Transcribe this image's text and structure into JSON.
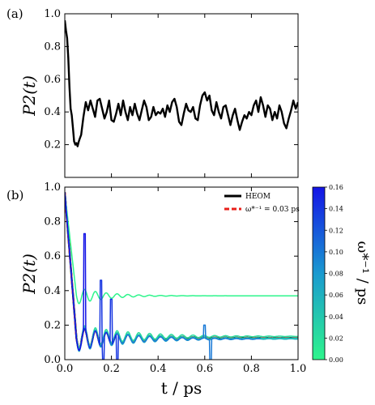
{
  "figure": {
    "panels": [
      {
        "id": "a",
        "label": "(a)"
      },
      {
        "id": "b",
        "label": "(b)"
      }
    ],
    "x_label": "t / ps",
    "y_label": "P2(t)",
    "colorbar_label": "ω*⁻¹ / ps"
  },
  "chart_data": [
    {
      "type": "line",
      "panel": "(a)",
      "xlabel": "t / ps",
      "ylabel": "P2(t)",
      "xlim": [
        0.0,
        1.0
      ],
      "ylim": [
        0.0,
        1.0
      ],
      "x_ticks": [
        "0.0",
        "0.2",
        "0.4",
        "0.6",
        "0.8",
        "1.0"
      ],
      "y_ticks": [
        "0.2",
        "0.4",
        "0.6",
        "0.8",
        "1.0"
      ],
      "series": [
        {
          "color": "#000000",
          "x": [
            0.0,
            0.005,
            0.01,
            0.015,
            0.02,
            0.025,
            0.03,
            0.035,
            0.04,
            0.045,
            0.05,
            0.055,
            0.06,
            0.065,
            0.07,
            0.08,
            0.09,
            0.1,
            0.11,
            0.12,
            0.13,
            0.14,
            0.15,
            0.16,
            0.17,
            0.18,
            0.19,
            0.2,
            0.21,
            0.22,
            0.23,
            0.24,
            0.25,
            0.26,
            0.27,
            0.28,
            0.29,
            0.3,
            0.31,
            0.32,
            0.33,
            0.34,
            0.35,
            0.36,
            0.37,
            0.38,
            0.39,
            0.4,
            0.41,
            0.42,
            0.43,
            0.44,
            0.45,
            0.46,
            0.47,
            0.48,
            0.49,
            0.5,
            0.51,
            0.52,
            0.53,
            0.54,
            0.55,
            0.56,
            0.57,
            0.58,
            0.59,
            0.6,
            0.61,
            0.62,
            0.63,
            0.64,
            0.65,
            0.66,
            0.67,
            0.68,
            0.69,
            0.7,
            0.71,
            0.72,
            0.73,
            0.74,
            0.75,
            0.76,
            0.77,
            0.78,
            0.79,
            0.8,
            0.81,
            0.82,
            0.83,
            0.84,
            0.85,
            0.86,
            0.87,
            0.88,
            0.89,
            0.9,
            0.91,
            0.92,
            0.93,
            0.94,
            0.95,
            0.96,
            0.97,
            0.98,
            0.99,
            1.0
          ],
          "y": [
            0.96,
            0.9,
            0.85,
            0.73,
            0.55,
            0.42,
            0.38,
            0.3,
            0.22,
            0.2,
            0.21,
            0.19,
            0.22,
            0.24,
            0.26,
            0.37,
            0.46,
            0.41,
            0.47,
            0.42,
            0.37,
            0.47,
            0.48,
            0.42,
            0.36,
            0.4,
            0.47,
            0.35,
            0.34,
            0.39,
            0.45,
            0.38,
            0.47,
            0.4,
            0.35,
            0.43,
            0.38,
            0.45,
            0.39,
            0.35,
            0.41,
            0.47,
            0.43,
            0.35,
            0.37,
            0.43,
            0.38,
            0.4,
            0.39,
            0.42,
            0.37,
            0.44,
            0.4,
            0.46,
            0.48,
            0.43,
            0.34,
            0.32,
            0.39,
            0.45,
            0.41,
            0.4,
            0.43,
            0.36,
            0.35,
            0.44,
            0.5,
            0.52,
            0.47,
            0.5,
            0.41,
            0.38,
            0.46,
            0.4,
            0.36,
            0.43,
            0.44,
            0.38,
            0.32,
            0.38,
            0.42,
            0.35,
            0.29,
            0.34,
            0.38,
            0.36,
            0.4,
            0.38,
            0.44,
            0.47,
            0.4,
            0.49,
            0.44,
            0.37,
            0.44,
            0.42,
            0.35,
            0.4,
            0.36,
            0.44,
            0.4,
            0.33,
            0.3,
            0.36,
            0.41,
            0.47,
            0.42,
            0.46
          ]
        }
      ]
    },
    {
      "type": "line",
      "panel": "(b)",
      "xlabel": "t / ps",
      "ylabel": "P2(t)",
      "xlim": [
        0.0,
        1.0
      ],
      "ylim": [
        0.0,
        1.0
      ],
      "x_ticks": [
        "0.0",
        "0.2",
        "0.4",
        "0.6",
        "0.8",
        "1.0"
      ],
      "y_ticks": [
        "0.0",
        "0.2",
        "0.4",
        "0.6",
        "0.8",
        "1.0"
      ],
      "legend": {
        "placement": "top-right",
        "entries": [
          {
            "label": "HEOM",
            "color": "#000000",
            "style": "solid"
          },
          {
            "label": "ω*⁻¹ = 0.03 ps",
            "color": "#e8201a",
            "style": "dashed"
          }
        ]
      },
      "colorbar": {
        "label": "ω*⁻¹ / ps",
        "range": [
          0.0,
          0.16
        ],
        "ticks": [
          "0.00",
          "0.02",
          "0.04",
          "0.06",
          "0.08",
          "0.10",
          "0.12",
          "0.14",
          "0.16"
        ],
        "color_low": "#2ef58c",
        "color_high": "#1414e6"
      },
      "series": [
        {
          "name": "HEOM",
          "kind": "heom",
          "color": "#000000",
          "mean": 0.125,
          "amp": 0.085,
          "period": 0.0465,
          "decay": 0.2
        },
        {
          "name": "ω*⁻¹ = 0.03 ps",
          "kind": "heom",
          "color": "#e8201a",
          "dashed": true,
          "mean": 0.125,
          "amp": 0.085,
          "period": 0.0465,
          "decay": 0.2
        },
        {
          "kind": "heom",
          "cb": 0.0,
          "mean": 0.37,
          "amp": 0.075,
          "period": 0.0465,
          "decay": 0.12
        },
        {
          "kind": "heom",
          "cb": 0.02,
          "mean": 0.135,
          "amp": 0.09,
          "period": 0.0465,
          "decay": 0.22
        },
        {
          "kind": "heom",
          "cb": 0.04,
          "mean": 0.125,
          "amp": 0.09,
          "period": 0.0465,
          "decay": 0.21
        },
        {
          "kind": "heom",
          "cb": 0.06,
          "mean": 0.12,
          "amp": 0.095,
          "period": 0.0465,
          "decay": 0.22
        },
        {
          "kind": "heom",
          "cb": 0.1,
          "mean": 0.12,
          "amp": 0.09,
          "period": 0.0465,
          "decay": 0.2,
          "end": 0.84,
          "spikes": [
            [
              0.6,
              0.2
            ],
            [
              0.625,
              -0.02
            ]
          ]
        },
        {
          "kind": "heom",
          "cb": 0.14,
          "mean": 0.12,
          "amp": 0.09,
          "period": 0.0465,
          "decay": 0.2,
          "end": 0.23,
          "spikes": [
            [
              0.155,
              0.46
            ],
            [
              0.165,
              0.0
            ],
            [
              0.2,
              0.35
            ],
            [
              0.225,
              0.0
            ]
          ]
        },
        {
          "kind": "heom",
          "cb": 0.16,
          "mean": 0.12,
          "amp": 0.09,
          "period": 0.0465,
          "decay": 0.2,
          "end": 0.095,
          "spikes": [
            [
              0.085,
              0.73
            ]
          ]
        }
      ]
    }
  ]
}
